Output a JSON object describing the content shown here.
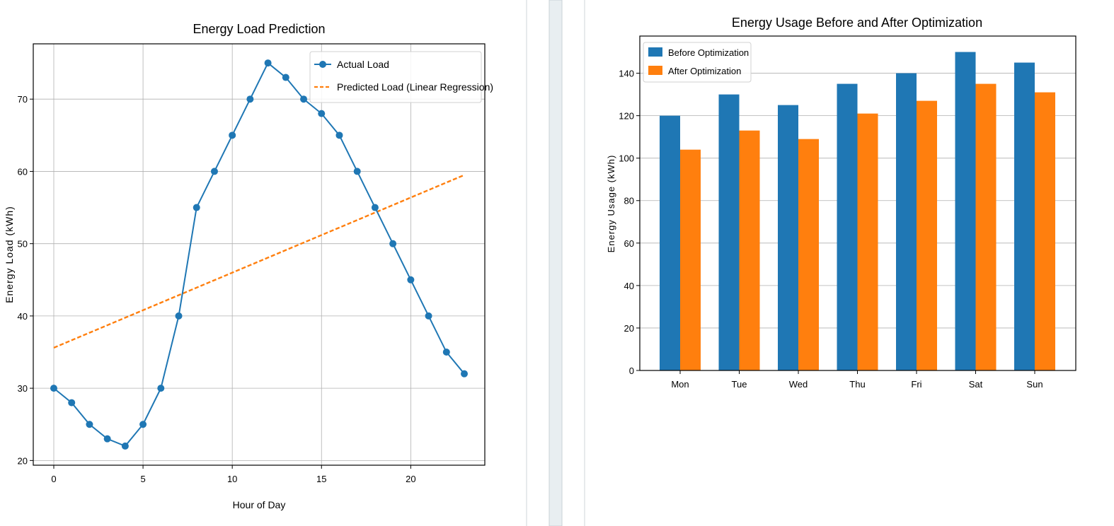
{
  "colors": {
    "blue": "#1f77b4",
    "orange": "#ff7f0e",
    "grid": "#b0b0b0",
    "divider_panel": "#e8eef1"
  },
  "chart_data": [
    {
      "type": "line",
      "title": "Energy Load Prediction",
      "xlabel": "Hour of Day",
      "ylabel": "Energy Load (kWh)",
      "xlim": [
        -1.15,
        24.15
      ],
      "ylim": [
        19.35,
        77.65
      ],
      "x_ticks": [
        0,
        5,
        10,
        15,
        20
      ],
      "y_ticks": [
        20,
        30,
        40,
        50,
        60,
        70
      ],
      "grid": true,
      "legend_position": "top-right",
      "series": [
        {
          "name": "Actual Load",
          "style": "line-with-markers",
          "color": "#1f77b4",
          "x": [
            0,
            1,
            2,
            3,
            4,
            5,
            6,
            7,
            8,
            9,
            10,
            11,
            12,
            13,
            14,
            15,
            16,
            17,
            18,
            19,
            20,
            21,
            22,
            23
          ],
          "y": [
            30,
            28,
            25,
            23,
            22,
            25,
            30,
            40,
            55,
            60,
            65,
            70,
            75,
            73,
            70,
            68,
            65,
            60,
            55,
            50,
            45,
            40,
            35,
            32
          ]
        },
        {
          "name": "Predicted Load (Linear Regression)",
          "style": "dashed",
          "color": "#ff7f0e",
          "x": [
            0,
            23
          ],
          "y": [
            35.6,
            59.5
          ]
        }
      ]
    },
    {
      "type": "bar",
      "title": "Energy Usage Before and After Optimization",
      "xlabel": "",
      "ylabel": "Energy Usage (kWh)",
      "ylim": [
        0,
        157.5
      ],
      "y_ticks": [
        0,
        20,
        40,
        60,
        80,
        100,
        120,
        140
      ],
      "grid": true,
      "grid_axis": "y",
      "legend_position": "top-left",
      "categories": [
        "Mon",
        "Tue",
        "Wed",
        "Thu",
        "Fri",
        "Sat",
        "Sun"
      ],
      "series": [
        {
          "name": "Before Optimization",
          "color": "#1f77b4",
          "values": [
            120,
            130,
            125,
            135,
            140,
            150,
            145
          ]
        },
        {
          "name": "After Optimization",
          "color": "#ff7f0e",
          "values": [
            104,
            113,
            109,
            121,
            127,
            135,
            131
          ]
        }
      ]
    }
  ]
}
